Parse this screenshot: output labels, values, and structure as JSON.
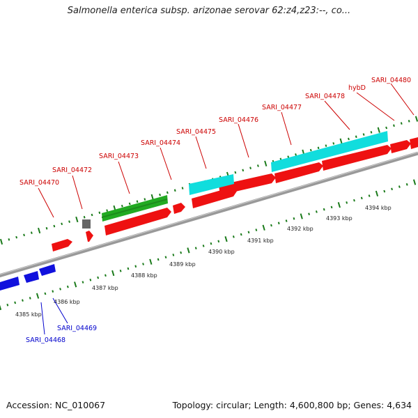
{
  "title": "Salmonella enterica subsp. arizonae serovar 62:z4,z23:--, co...",
  "footer": {
    "accession": "Accession: NC_010067",
    "summary": "Topology: circular; Length: 4,600,800 bp; Genes: 4,634"
  },
  "colors": {
    "forward_gene": "#ee1111",
    "reverse_gene": "#1111dd",
    "rrna_like": "#11dddd",
    "green_feature": "#22aa22",
    "gray_feature": "#666666",
    "backbone": "#999999",
    "tick": "#1a7a1a",
    "label_red": "#cc0000",
    "label_blue": "#0000cc"
  },
  "kbp_ticks": [
    "4385 kbp",
    "4386 kbp",
    "4387 kbp",
    "4388 kbp",
    "4389 kbp",
    "4390 kbp",
    "4391 kbp",
    "4392 kbp",
    "4393 kbp",
    "4394 kbp"
  ],
  "gene_labels_top": [
    "SARI_04470",
    "SARI_04472",
    "SARI_04473",
    "SARI_04474",
    "SARI_04475",
    "SARI_04476",
    "SARI_04477",
    "SARI_04478",
    "hybD",
    "SARI_04480"
  ],
  "gene_labels_bottom": [
    "SARI_04468",
    "SARI_04469"
  ]
}
